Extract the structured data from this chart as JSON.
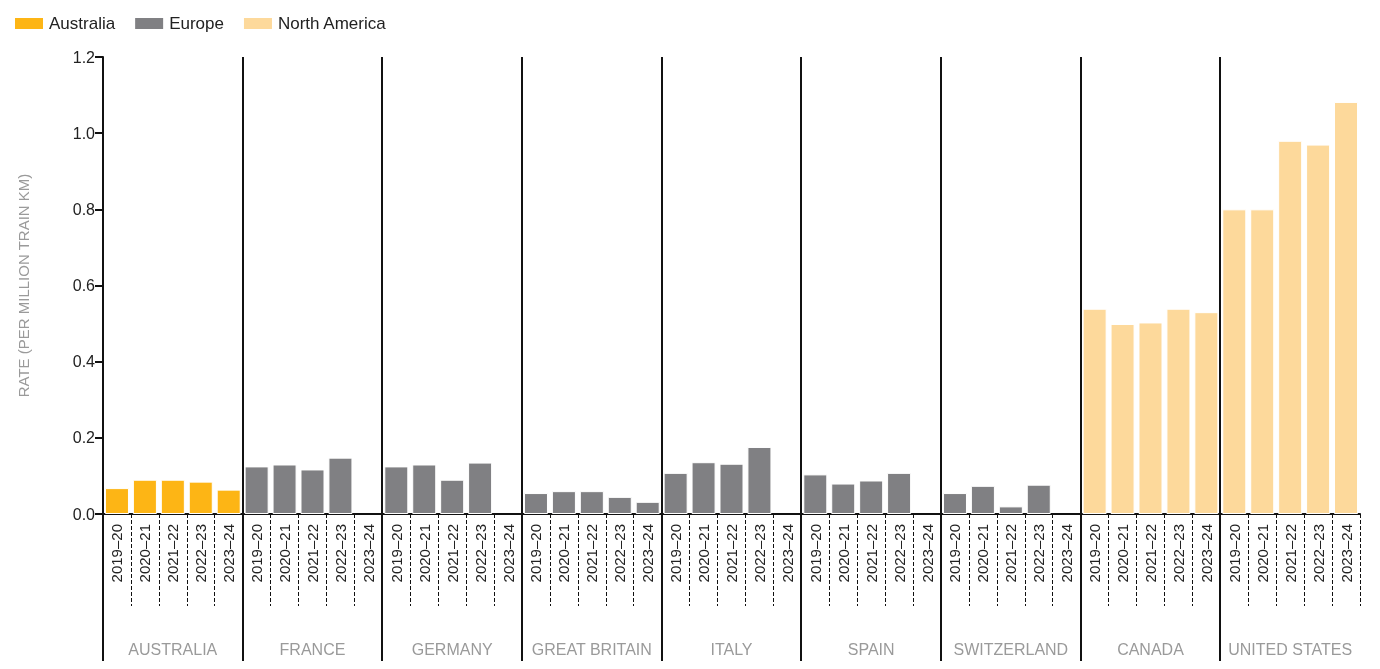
{
  "chart_data": {
    "type": "bar",
    "ylabel": "RATE (PER MILLION TRAIN KM)",
    "categories": [
      "2019–20",
      "2020–21",
      "2021–22",
      "2022–23",
      "2023–24",
      "2019–20",
      "2020–21",
      "2021–22",
      "2022–23",
      "2023–24",
      "2019–20",
      "2020–21",
      "2021–22",
      "2022–23",
      "2023–24",
      "2019–20",
      "2020–21",
      "2021–22",
      "2022–23",
      "2023–24",
      "2019–20",
      "2020–21",
      "2021–22",
      "2022–23",
      "2023–24",
      "2019–20",
      "2020–21",
      "2021–22",
      "2022–23",
      "2023–24",
      "2019–20",
      "2020–21",
      "2021–22",
      "2022–23",
      "2023–24",
      "2019–20",
      "2020–21",
      "2021–22",
      "2022–23",
      "2023–24",
      "2019–20",
      "2020–21",
      "2021–22",
      "2022–23",
      "2023–24"
    ],
    "annotations": [
      "AUSTRALIA",
      "FRANCE",
      "GERMANY",
      "GREAT BRITAIN",
      "ITALY",
      "SPAIN",
      "SWITZERLAND",
      "CANADA",
      "UNITED STATES"
    ],
    "series": [
      {
        "name": "Australia",
        "color": "#fdb515",
        "values": [
          0.068,
          0.09,
          0.09,
          0.085,
          0.064,
          null,
          null,
          null,
          null,
          null,
          null,
          null,
          null,
          null,
          null,
          null,
          null,
          null,
          null,
          null,
          null,
          null,
          null,
          null,
          null,
          null,
          null,
          null,
          null,
          null,
          null,
          null,
          null,
          null,
          null,
          null,
          null,
          null,
          null,
          null,
          null,
          null,
          null,
          null,
          null
        ]
      },
      {
        "name": "Europe",
        "color": "#808083",
        "values": [
          null,
          null,
          null,
          null,
          null,
          0.125,
          0.13,
          0.117,
          0.148,
          null,
          0.125,
          0.13,
          0.09,
          0.135,
          null,
          0.055,
          0.06,
          0.06,
          0.045,
          0.032,
          0.108,
          0.136,
          0.132,
          0.176,
          null,
          0.104,
          0.08,
          0.088,
          0.108,
          null,
          0.055,
          0.074,
          0.02,
          0.077,
          null,
          null,
          null,
          null,
          null,
          null,
          null,
          null,
          null,
          null,
          null
        ]
      },
      {
        "name": "North America",
        "color": "#fdd99b",
        "values": [
          null,
          null,
          null,
          null,
          null,
          null,
          null,
          null,
          null,
          null,
          null,
          null,
          null,
          null,
          null,
          null,
          null,
          null,
          null,
          null,
          null,
          null,
          null,
          null,
          null,
          null,
          null,
          null,
          null,
          null,
          null,
          null,
          null,
          null,
          null,
          0.539,
          0.499,
          0.503,
          0.539,
          0.53,
          0.8,
          0.8,
          0.98,
          0.97,
          1.082
        ]
      }
    ],
    "ylim": [
      0,
      1.2
    ],
    "yticks": [
      {
        "value": 0,
        "label": "0.0"
      },
      {
        "value": 0.2,
        "label": "0.2"
      },
      {
        "value": 0.4,
        "label": "0.4"
      },
      {
        "value": 0.6,
        "label": "0.6"
      },
      {
        "value": 0.8,
        "label": "0.8"
      },
      {
        "value": 1,
        "label": "1.0"
      },
      {
        "value": 1.2,
        "label": "1.2"
      }
    ],
    "grid": false,
    "legend": "top left"
  }
}
